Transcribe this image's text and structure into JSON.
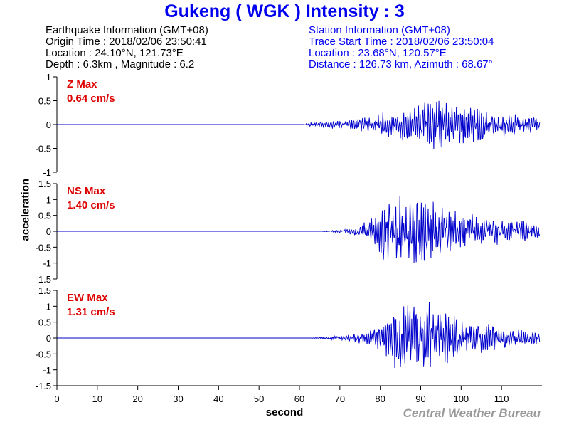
{
  "title": "Gukeng  ( WGK )  Intensity : 3",
  "earthquake_info": {
    "header": "Earthquake Information  (GMT+08)",
    "origin_time": "Origin Time : 2018/02/06 23:50:41",
    "location": "Location : 24.10°N, 121.73°E",
    "depth_magnitude": "Depth : 6.3km , Magnitude : 6.2"
  },
  "station_info": {
    "header": "Station Information  (GMT+08)",
    "trace_start": "Trace Start Time : 2018/02/06 23:50:04",
    "location": "Location : 23.68°N, 120.57°E",
    "distance_azimuth": "Distance : 126.73 km, Azimuth : 68.67°"
  },
  "credit": "Central Weather Bureau",
  "colors": {
    "trace": "#0000cc",
    "max_label": "#dd0000",
    "title": "#0000ee"
  },
  "chart_data": [
    {
      "type": "line",
      "component": "Z",
      "max_label": "Z Max",
      "max_value": "0.64 cm/s",
      "ylim": [
        -1,
        1
      ],
      "yticks": [
        1,
        0.5,
        0,
        -0.5,
        -1
      ],
      "ytick_labels": [
        "1",
        "0.5",
        "0",
        "-0.5",
        "-1"
      ],
      "signal_onset": 61,
      "peak": 0.64,
      "envelope": [
        [
          0,
          0
        ],
        [
          61,
          0
        ],
        [
          62,
          0.03
        ],
        [
          65,
          0.08
        ],
        [
          70,
          0.1
        ],
        [
          74,
          0.12
        ],
        [
          78,
          0.2
        ],
        [
          82,
          0.3
        ],
        [
          86,
          0.4
        ],
        [
          90,
          0.45
        ],
        [
          94,
          0.55
        ],
        [
          97,
          0.6
        ],
        [
          100,
          0.45
        ],
        [
          104,
          0.4
        ],
        [
          108,
          0.3
        ],
        [
          112,
          0.25
        ],
        [
          116,
          0.2
        ],
        [
          119.5,
          0.15
        ]
      ]
    },
    {
      "type": "line",
      "component": "NS",
      "max_label": "NS Max",
      "max_value": "1.40 cm/s",
      "ylim": [
        -1.5,
        1.5
      ],
      "yticks": [
        1.5,
        1,
        0.5,
        0,
        -0.5,
        -1,
        -1.5
      ],
      "ytick_labels": [
        "1.5",
        "1",
        "0.5",
        "0",
        "-0.5",
        "-1",
        "-1.5"
      ],
      "signal_onset": 65,
      "peak": 1.4,
      "envelope": [
        [
          0,
          0
        ],
        [
          65,
          0
        ],
        [
          67,
          0.02
        ],
        [
          70,
          0.05
        ],
        [
          73,
          0.12
        ],
        [
          76,
          0.3
        ],
        [
          79,
          0.5
        ],
        [
          81,
          1.0
        ],
        [
          83,
          1.4
        ],
        [
          86,
          1.1
        ],
        [
          89,
          1.3
        ],
        [
          92,
          0.9
        ],
        [
          95,
          1.0
        ],
        [
          98,
          0.8
        ],
        [
          102,
          0.6
        ],
        [
          106,
          0.5
        ],
        [
          110,
          0.4
        ],
        [
          114,
          0.35
        ],
        [
          119.5,
          0.3
        ]
      ]
    },
    {
      "type": "line",
      "component": "EW",
      "max_label": "EW Max",
      "max_value": "1.31 cm/s",
      "ylim": [
        -1.5,
        1.5
      ],
      "yticks": [
        1.5,
        1,
        0.5,
        0,
        -0.5,
        -1,
        -1.5
      ],
      "ytick_labels": [
        "1.5",
        "1",
        "0.5",
        "0",
        "-0.5",
        "-1",
        "-1.5"
      ],
      "signal_onset": 63,
      "peak": 1.31,
      "envelope": [
        [
          0,
          0
        ],
        [
          63,
          0
        ],
        [
          65,
          0.03
        ],
        [
          68,
          0.06
        ],
        [
          72,
          0.12
        ],
        [
          76,
          0.2
        ],
        [
          80,
          0.4
        ],
        [
          82,
          0.8
        ],
        [
          84,
          1.0
        ],
        [
          87,
          1.2
        ],
        [
          91,
          1.31
        ],
        [
          94,
          1.0
        ],
        [
          97,
          0.8
        ],
        [
          100,
          0.6
        ],
        [
          104,
          0.5
        ],
        [
          108,
          0.45
        ],
        [
          112,
          0.35
        ],
        [
          116,
          0.25
        ],
        [
          119.5,
          0.2
        ]
      ]
    }
  ],
  "x_axis": {
    "label": "second",
    "range": [
      0,
      120
    ],
    "ticks": [
      0,
      10,
      20,
      30,
      40,
      50,
      60,
      70,
      80,
      90,
      100,
      110
    ],
    "tick_labels": [
      "0",
      "10",
      "20",
      "30",
      "40",
      "50",
      "60",
      "70",
      "80",
      "90",
      "100",
      "110"
    ]
  },
  "y_axis": {
    "label": "acceleration"
  }
}
